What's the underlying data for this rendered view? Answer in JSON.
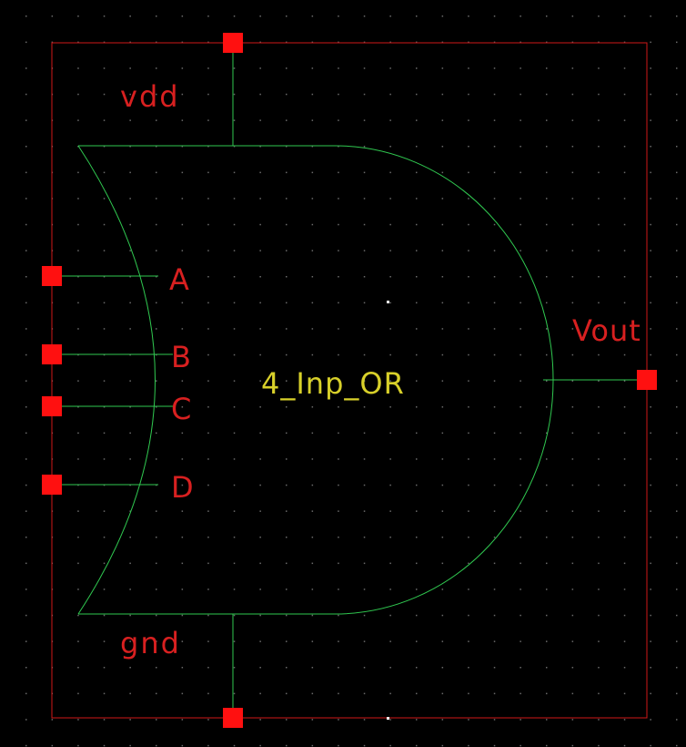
{
  "colors": {
    "background": "#000000",
    "grid_dot": "#6a6a6a",
    "boundary": "#d01818",
    "pin_square": "#ff1010",
    "gate_stroke": "#30c850",
    "pin_label": "#d82020",
    "cell_label": "#d8d02a",
    "origin_dot": "#ffffff"
  },
  "symbol": {
    "cell_name": "4_Inp_OR",
    "pins": {
      "vdd": "vdd",
      "gnd": "gnd",
      "a": "A",
      "b": "B",
      "c": "C",
      "d": "D",
      "vout": "Vout"
    }
  }
}
